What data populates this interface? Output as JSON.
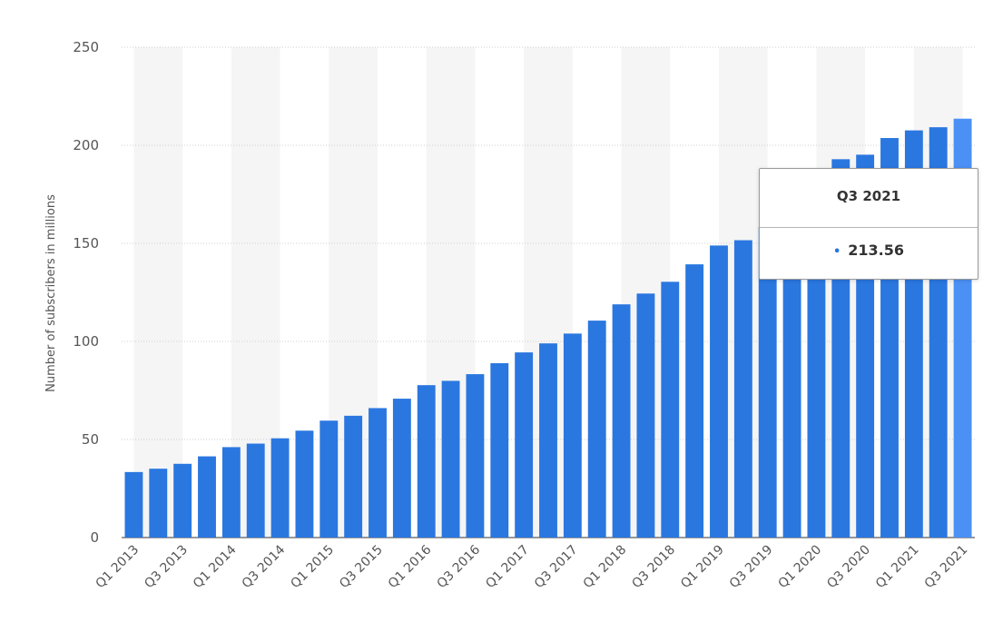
{
  "chart_data": {
    "type": "bar",
    "title": "",
    "xlabel": "",
    "ylabel": "Number of subscribers in millions",
    "ylim": [
      0,
      250
    ],
    "yticks": [
      0,
      50,
      100,
      150,
      200,
      250
    ],
    "grid": true,
    "legend": "none",
    "categories": [
      "Q1 2013",
      "Q2 2013",
      "Q3 2013",
      "Q4 2013",
      "Q1 2014",
      "Q2 2014",
      "Q3 2014",
      "Q4 2014",
      "Q1 2015",
      "Q2 2015",
      "Q3 2015",
      "Q4 2015",
      "Q1 2016",
      "Q2 2016",
      "Q3 2016",
      "Q4 2016",
      "Q1 2017",
      "Q2 2017",
      "Q3 2017",
      "Q4 2017",
      "Q1 2018",
      "Q2 2018",
      "Q3 2018",
      "Q4 2018",
      "Q1 2019",
      "Q2 2019",
      "Q3 2019",
      "Q4 2019",
      "Q1 2020",
      "Q2 2020",
      "Q3 2020",
      "Q4 2020",
      "Q1 2021",
      "Q2 2021",
      "Q3 2021"
    ],
    "visible_tick_labels": [
      "Q1 2013",
      "Q3 2013",
      "Q1 2014",
      "Q3 2014",
      "Q1 2015",
      "Q3 2015",
      "Q1 2016",
      "Q3 2016",
      "Q1 2017",
      "Q3 2017",
      "Q1 2018",
      "Q3 2018",
      "Q1 2019",
      "Q3 2019",
      "Q1 2020",
      "Q3 2020",
      "Q1 2021",
      "Q3 2021"
    ],
    "series": [
      {
        "values": [
          33.4,
          35.1,
          37.6,
          41.4,
          46.1,
          47.9,
          50.6,
          54.5,
          59.6,
          62.1,
          66.0,
          70.8,
          77.7,
          79.9,
          83.3,
          88.9,
          94.4,
          99.0,
          104.0,
          110.6,
          118.9,
          124.4,
          130.4,
          139.3,
          148.9,
          151.6,
          158.3,
          167.1,
          182.9,
          192.9,
          195.2,
          203.7,
          207.6,
          209.2,
          213.56
        ],
        "color": "#2a77e0",
        "highlight_color": "#4b90f5"
      }
    ],
    "highlight_index": 34
  },
  "tooltip": {
    "title": "Q3 2021",
    "value": "213.56",
    "dot": "•"
  }
}
